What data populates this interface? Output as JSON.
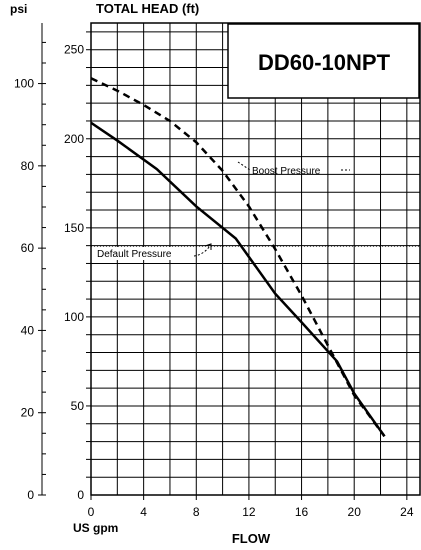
{
  "chart_data": {
    "type": "line",
    "title": "DD60-10NPT",
    "y_left_label": "psi",
    "y_right_label": "TOTAL HEAD (ft)",
    "x_unit_label": "US gpm",
    "x_title": "FLOW",
    "x_ticks": [
      0,
      4,
      8,
      12,
      16,
      20,
      24
    ],
    "ft_ticks": [
      0,
      50,
      100,
      150,
      200,
      250
    ],
    "psi_ticks": [
      0,
      20,
      40,
      60,
      80,
      100
    ],
    "xlim": [
      0,
      25
    ],
    "ylim_ft": [
      0,
      265
    ],
    "psi_per_ft": 0.4329,
    "grid": true,
    "series": [
      {
        "name": "Boost Pressure",
        "style": "dashed",
        "x": [
          0,
          2,
          4,
          6,
          8,
          10,
          12,
          14,
          16,
          18,
          20,
          22.3
        ],
        "y": [
          234,
          227,
          219,
          210,
          198,
          182,
          162,
          138,
          112,
          84,
          56,
          33
        ]
      },
      {
        "name": "Default Pressure",
        "style": "solid",
        "x": [
          0,
          2,
          5,
          8,
          11,
          14,
          16,
          18.7,
          20,
          22.3
        ],
        "y": [
          209,
          199,
          183,
          162,
          144,
          113,
          97,
          75,
          57,
          33
        ]
      },
      {
        "name": "default-setting",
        "style": "dotted",
        "x": [
          0,
          25
        ],
        "y_psi": [
          60.5,
          60.5
        ]
      }
    ]
  }
}
